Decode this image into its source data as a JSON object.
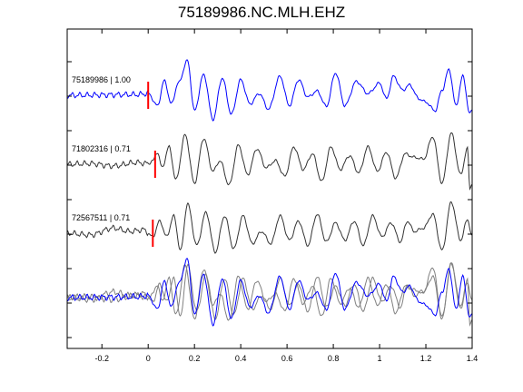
{
  "chart_data": {
    "type": "line",
    "title": "75189986.NC.MLH.EHZ",
    "xlabel": "",
    "ylabel": "",
    "xlim": [
      -0.35,
      1.4
    ],
    "x_ticks": [
      "-0.2",
      "0",
      "0.2",
      "0.4",
      "0.6",
      "0.8",
      "1",
      "1.2",
      "1.4"
    ],
    "grid": false,
    "colors": {
      "primary": "#0000ff",
      "other": "#333333",
      "overlay_other": "#808080",
      "pick": "#ff0000",
      "axis": "#000000"
    },
    "series": [
      {
        "label": "75189986 | 1.00",
        "event": "75189986",
        "cc": 1.0,
        "pick_time": 0.0,
        "peaks": [
          [
            -0.35,
            0
          ],
          [
            -0.05,
            0.02
          ],
          [
            0.0,
            0.05
          ],
          [
            0.04,
            -0.3
          ],
          [
            0.07,
            0.42
          ],
          [
            0.1,
            -0.25
          ],
          [
            0.13,
            0.35
          ],
          [
            0.17,
            1.0
          ],
          [
            0.2,
            -0.45
          ],
          [
            0.24,
            0.6
          ],
          [
            0.28,
            -0.7
          ],
          [
            0.32,
            0.5
          ],
          [
            0.36,
            -0.55
          ],
          [
            0.4,
            0.45
          ],
          [
            0.44,
            -0.25
          ],
          [
            0.48,
            0.05
          ],
          [
            0.52,
            -0.4
          ],
          [
            0.57,
            0.55
          ],
          [
            0.61,
            -0.3
          ],
          [
            0.65,
            0.45
          ],
          [
            0.69,
            -0.05
          ],
          [
            0.73,
            0.12
          ],
          [
            0.77,
            -0.32
          ],
          [
            0.81,
            0.65
          ],
          [
            0.85,
            -0.3
          ],
          [
            0.9,
            0.4
          ],
          [
            0.95,
            0.05
          ],
          [
            1.0,
            0.35
          ],
          [
            1.03,
            -0.1
          ],
          [
            1.06,
            0.55
          ],
          [
            1.1,
            0.15
          ],
          [
            1.13,
            0.3
          ],
          [
            1.17,
            -0.1
          ],
          [
            1.2,
            -0.2
          ],
          [
            1.24,
            -0.45
          ],
          [
            1.27,
            0.15
          ],
          [
            1.3,
            0.75
          ],
          [
            1.33,
            -0.3
          ],
          [
            1.36,
            0.55
          ],
          [
            1.39,
            -0.55
          ],
          [
            1.4,
            -0.4
          ]
        ]
      },
      {
        "label": "71802316 | 0.71",
        "event": "71802316",
        "cc": 0.71,
        "pick_time": 0.03,
        "peaks": [
          [
            -0.35,
            0
          ],
          [
            -0.25,
            0.02
          ],
          [
            -0.15,
            -0.05
          ],
          [
            -0.05,
            0.05
          ],
          [
            0.0,
            0.02
          ],
          [
            0.02,
            0.1
          ],
          [
            0.04,
            0.35
          ],
          [
            0.06,
            -0.1
          ],
          [
            0.09,
            0.5
          ],
          [
            0.12,
            -0.45
          ],
          [
            0.16,
            0.85
          ],
          [
            0.2,
            -0.55
          ],
          [
            0.24,
            0.75
          ],
          [
            0.28,
            -0.2
          ],
          [
            0.31,
            0.1
          ],
          [
            0.35,
            -0.6
          ],
          [
            0.39,
            0.55
          ],
          [
            0.43,
            -0.3
          ],
          [
            0.47,
            0.45
          ],
          [
            0.51,
            -0.1
          ],
          [
            0.55,
            0.1
          ],
          [
            0.59,
            -0.35
          ],
          [
            0.63,
            0.5
          ],
          [
            0.67,
            -0.15
          ],
          [
            0.71,
            0.3
          ],
          [
            0.75,
            -0.5
          ],
          [
            0.79,
            0.5
          ],
          [
            0.83,
            -0.15
          ],
          [
            0.87,
            0.25
          ],
          [
            0.91,
            -0.25
          ],
          [
            0.95,
            0.5
          ],
          [
            0.99,
            -0.2
          ],
          [
            1.03,
            0.35
          ],
          [
            1.07,
            -0.4
          ],
          [
            1.11,
            0.3
          ],
          [
            1.15,
            0.2
          ],
          [
            1.19,
            0.15
          ],
          [
            1.23,
            0.8
          ],
          [
            1.27,
            -0.55
          ],
          [
            1.31,
            0.9
          ],
          [
            1.35,
            -0.3
          ],
          [
            1.38,
            0.45
          ],
          [
            1.39,
            -0.7
          ],
          [
            1.4,
            -0.55
          ]
        ]
      },
      {
        "label": "72567511 | 0.71",
        "event": "72567511",
        "cc": 0.71,
        "pick_time": 0.02,
        "peaks": [
          [
            -0.35,
            0
          ],
          [
            -0.25,
            -0.05
          ],
          [
            -0.15,
            0.15
          ],
          [
            -0.08,
            0.05
          ],
          [
            -0.02,
            0.1
          ],
          [
            0.02,
            -0.1
          ],
          [
            0.05,
            0.35
          ],
          [
            0.08,
            -0.1
          ],
          [
            0.11,
            0.5
          ],
          [
            0.14,
            -0.5
          ],
          [
            0.17,
            0.85
          ],
          [
            0.21,
            -0.35
          ],
          [
            0.25,
            0.6
          ],
          [
            0.29,
            -0.55
          ],
          [
            0.33,
            0.5
          ],
          [
            0.37,
            -0.45
          ],
          [
            0.41,
            0.5
          ],
          [
            0.45,
            -0.3
          ],
          [
            0.49,
            0.05
          ],
          [
            0.53,
            -0.3
          ],
          [
            0.57,
            0.5
          ],
          [
            0.61,
            -0.2
          ],
          [
            0.65,
            0.35
          ],
          [
            0.69,
            -0.35
          ],
          [
            0.73,
            0.55
          ],
          [
            0.77,
            -0.25
          ],
          [
            0.81,
            0.3
          ],
          [
            0.85,
            -0.2
          ],
          [
            0.89,
            0.35
          ],
          [
            0.93,
            -0.35
          ],
          [
            0.97,
            0.5
          ],
          [
            1.01,
            -0.1
          ],
          [
            1.05,
            0.3
          ],
          [
            1.09,
            -0.25
          ],
          [
            1.12,
            0.35
          ],
          [
            1.15,
            0.05
          ],
          [
            1.19,
            0.15
          ],
          [
            1.23,
            0.55
          ],
          [
            1.27,
            -0.5
          ],
          [
            1.31,
            0.9
          ],
          [
            1.35,
            -0.2
          ],
          [
            1.38,
            0.4
          ],
          [
            1.4,
            -0.1
          ]
        ]
      }
    ]
  }
}
